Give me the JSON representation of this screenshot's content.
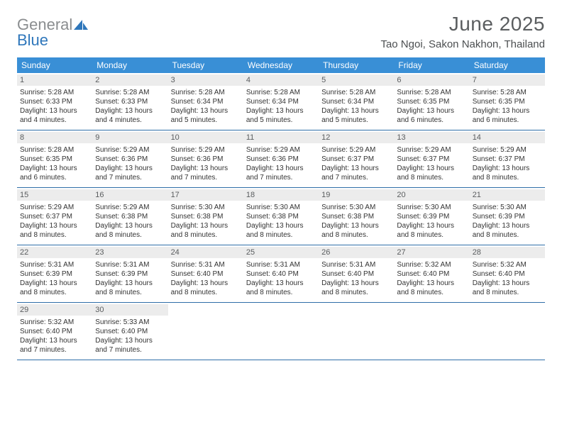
{
  "brand": {
    "word1": "General",
    "word2": "Blue"
  },
  "title": "June 2025",
  "location": "Tao Ngoi, Sakon Nakhon, Thailand",
  "colors": {
    "header_bg": "#398fd6",
    "header_text": "#ffffff",
    "daynum_bg": "#ececec",
    "daynum_text": "#5a5d5f",
    "rule": "#2f6ea8",
    "logo_gray": "#8a8d8f",
    "logo_blue": "#2f77bb"
  },
  "weekdays": [
    "Sunday",
    "Monday",
    "Tuesday",
    "Wednesday",
    "Thursday",
    "Friday",
    "Saturday"
  ],
  "weeks": [
    [
      {
        "n": "1",
        "sr": "Sunrise: 5:28 AM",
        "ss": "Sunset: 6:33 PM",
        "d1": "Daylight: 13 hours",
        "d2": "and 4 minutes."
      },
      {
        "n": "2",
        "sr": "Sunrise: 5:28 AM",
        "ss": "Sunset: 6:33 PM",
        "d1": "Daylight: 13 hours",
        "d2": "and 4 minutes."
      },
      {
        "n": "3",
        "sr": "Sunrise: 5:28 AM",
        "ss": "Sunset: 6:34 PM",
        "d1": "Daylight: 13 hours",
        "d2": "and 5 minutes."
      },
      {
        "n": "4",
        "sr": "Sunrise: 5:28 AM",
        "ss": "Sunset: 6:34 PM",
        "d1": "Daylight: 13 hours",
        "d2": "and 5 minutes."
      },
      {
        "n": "5",
        "sr": "Sunrise: 5:28 AM",
        "ss": "Sunset: 6:34 PM",
        "d1": "Daylight: 13 hours",
        "d2": "and 5 minutes."
      },
      {
        "n": "6",
        "sr": "Sunrise: 5:28 AM",
        "ss": "Sunset: 6:35 PM",
        "d1": "Daylight: 13 hours",
        "d2": "and 6 minutes."
      },
      {
        "n": "7",
        "sr": "Sunrise: 5:28 AM",
        "ss": "Sunset: 6:35 PM",
        "d1": "Daylight: 13 hours",
        "d2": "and 6 minutes."
      }
    ],
    [
      {
        "n": "8",
        "sr": "Sunrise: 5:28 AM",
        "ss": "Sunset: 6:35 PM",
        "d1": "Daylight: 13 hours",
        "d2": "and 6 minutes."
      },
      {
        "n": "9",
        "sr": "Sunrise: 5:29 AM",
        "ss": "Sunset: 6:36 PM",
        "d1": "Daylight: 13 hours",
        "d2": "and 7 minutes."
      },
      {
        "n": "10",
        "sr": "Sunrise: 5:29 AM",
        "ss": "Sunset: 6:36 PM",
        "d1": "Daylight: 13 hours",
        "d2": "and 7 minutes."
      },
      {
        "n": "11",
        "sr": "Sunrise: 5:29 AM",
        "ss": "Sunset: 6:36 PM",
        "d1": "Daylight: 13 hours",
        "d2": "and 7 minutes."
      },
      {
        "n": "12",
        "sr": "Sunrise: 5:29 AM",
        "ss": "Sunset: 6:37 PM",
        "d1": "Daylight: 13 hours",
        "d2": "and 7 minutes."
      },
      {
        "n": "13",
        "sr": "Sunrise: 5:29 AM",
        "ss": "Sunset: 6:37 PM",
        "d1": "Daylight: 13 hours",
        "d2": "and 8 minutes."
      },
      {
        "n": "14",
        "sr": "Sunrise: 5:29 AM",
        "ss": "Sunset: 6:37 PM",
        "d1": "Daylight: 13 hours",
        "d2": "and 8 minutes."
      }
    ],
    [
      {
        "n": "15",
        "sr": "Sunrise: 5:29 AM",
        "ss": "Sunset: 6:37 PM",
        "d1": "Daylight: 13 hours",
        "d2": "and 8 minutes."
      },
      {
        "n": "16",
        "sr": "Sunrise: 5:29 AM",
        "ss": "Sunset: 6:38 PM",
        "d1": "Daylight: 13 hours",
        "d2": "and 8 minutes."
      },
      {
        "n": "17",
        "sr": "Sunrise: 5:30 AM",
        "ss": "Sunset: 6:38 PM",
        "d1": "Daylight: 13 hours",
        "d2": "and 8 minutes."
      },
      {
        "n": "18",
        "sr": "Sunrise: 5:30 AM",
        "ss": "Sunset: 6:38 PM",
        "d1": "Daylight: 13 hours",
        "d2": "and 8 minutes."
      },
      {
        "n": "19",
        "sr": "Sunrise: 5:30 AM",
        "ss": "Sunset: 6:38 PM",
        "d1": "Daylight: 13 hours",
        "d2": "and 8 minutes."
      },
      {
        "n": "20",
        "sr": "Sunrise: 5:30 AM",
        "ss": "Sunset: 6:39 PM",
        "d1": "Daylight: 13 hours",
        "d2": "and 8 minutes."
      },
      {
        "n": "21",
        "sr": "Sunrise: 5:30 AM",
        "ss": "Sunset: 6:39 PM",
        "d1": "Daylight: 13 hours",
        "d2": "and 8 minutes."
      }
    ],
    [
      {
        "n": "22",
        "sr": "Sunrise: 5:31 AM",
        "ss": "Sunset: 6:39 PM",
        "d1": "Daylight: 13 hours",
        "d2": "and 8 minutes."
      },
      {
        "n": "23",
        "sr": "Sunrise: 5:31 AM",
        "ss": "Sunset: 6:39 PM",
        "d1": "Daylight: 13 hours",
        "d2": "and 8 minutes."
      },
      {
        "n": "24",
        "sr": "Sunrise: 5:31 AM",
        "ss": "Sunset: 6:40 PM",
        "d1": "Daylight: 13 hours",
        "d2": "and 8 minutes."
      },
      {
        "n": "25",
        "sr": "Sunrise: 5:31 AM",
        "ss": "Sunset: 6:40 PM",
        "d1": "Daylight: 13 hours",
        "d2": "and 8 minutes."
      },
      {
        "n": "26",
        "sr": "Sunrise: 5:31 AM",
        "ss": "Sunset: 6:40 PM",
        "d1": "Daylight: 13 hours",
        "d2": "and 8 minutes."
      },
      {
        "n": "27",
        "sr": "Sunrise: 5:32 AM",
        "ss": "Sunset: 6:40 PM",
        "d1": "Daylight: 13 hours",
        "d2": "and 8 minutes."
      },
      {
        "n": "28",
        "sr": "Sunrise: 5:32 AM",
        "ss": "Sunset: 6:40 PM",
        "d1": "Daylight: 13 hours",
        "d2": "and 8 minutes."
      }
    ],
    [
      {
        "n": "29",
        "sr": "Sunrise: 5:32 AM",
        "ss": "Sunset: 6:40 PM",
        "d1": "Daylight: 13 hours",
        "d2": "and 7 minutes."
      },
      {
        "n": "30",
        "sr": "Sunrise: 5:33 AM",
        "ss": "Sunset: 6:40 PM",
        "d1": "Daylight: 13 hours",
        "d2": "and 7 minutes."
      },
      null,
      null,
      null,
      null,
      null
    ]
  ]
}
